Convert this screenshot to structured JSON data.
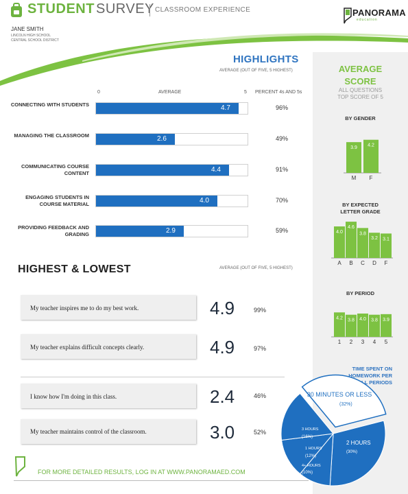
{
  "header": {
    "title_student": "STUDENT",
    "title_survey": "SURVEY",
    "title_sub": "CLASSROOM EXPERIENCE",
    "student_name": "JANE SMITH",
    "school": "LINCOLN HIGH SCHOOL",
    "district": "CENTRAL SCHOOL DISTRICT",
    "logo_text": "PANORAMA",
    "logo_sub": "education"
  },
  "highlights": {
    "title": "HIGHLIGHTS",
    "subtitle": "AVERAGE (OUT OF FIVE, 5 HIGHEST)",
    "axis_min": "0",
    "axis_label": "AVERAGE",
    "axis_max": "5",
    "pct_header": "PERCENT 4s AND 5s",
    "items": [
      {
        "label": "CONNECTING WITH STUDENTS",
        "value": 4.7,
        "value_text": "4.7",
        "pct": "96%"
      },
      {
        "label": "MANAGING THE CLASSROOM",
        "value": 2.6,
        "value_text": "2.6",
        "pct": "49%"
      },
      {
        "label": "COMMUNICATING COURSE CONTENT",
        "value": 4.4,
        "value_text": "4.4",
        "pct": "91%"
      },
      {
        "label": "ENGAGING STUDENTS IN COURSE MATERIAL",
        "value": 4.0,
        "value_text": "4.0",
        "pct": "70%"
      },
      {
        "label": "PROVIDING FEEDBACK AND GRADING",
        "value": 2.9,
        "value_text": "2.9",
        "pct": "59%"
      }
    ]
  },
  "highest_lowest": {
    "title": "HIGHEST & LOWEST",
    "subtitle": "AVERAGE (OUT OF FIVE, 5 HIGHEST)",
    "items": [
      {
        "statement": "My teacher inspires me to do my best work.",
        "score": "4.9",
        "pct": "99%"
      },
      {
        "statement": "My teacher explains difficult concepts clearly.",
        "score": "4.9",
        "pct": "97%"
      },
      {
        "statement": "I know how I'm doing in this class.",
        "score": "2.4",
        "pct": "46%"
      },
      {
        "statement": "My teacher maintains control of the classroom.",
        "score": "3.0",
        "pct": "52%"
      }
    ]
  },
  "side": {
    "title_line1": "AVERAGE",
    "title_line2": "SCORE",
    "sub_line1": "ALL QUESTIONS",
    "sub_line2": "TOP SCORE OF 5",
    "gender_label": "BY GENDER",
    "grade_label_line1": "BY EXPECTED",
    "grade_label_line2": "LETTER GRADE",
    "period_label": "BY PERIOD",
    "time_title_line1": "TIME SPENT ON",
    "time_title_line2": "HOMEWORK PER",
    "time_title_line3": "NIGHT, ALL PERIODS"
  },
  "footer": {
    "text": "FOR MORE DETAILED RESULTS, LOG IN AT WWW.PANORAMAED.COM"
  },
  "colors": {
    "green": "#7dc242",
    "blue": "#1f6fc0"
  },
  "chart_data": [
    {
      "type": "bar",
      "title": "BY GENDER",
      "categories": [
        "M",
        "F"
      ],
      "values": [
        3.9,
        4.2
      ],
      "ylim": [
        0,
        5
      ]
    },
    {
      "type": "bar",
      "title": "BY EXPECTED LETTER GRADE",
      "categories": [
        "A",
        "B",
        "C",
        "D",
        "F"
      ],
      "values": [
        4.0,
        4.6,
        3.8,
        3.2,
        3.1
      ],
      "ylim": [
        0,
        5
      ]
    },
    {
      "type": "bar",
      "title": "BY PERIOD",
      "categories": [
        "1",
        "2",
        "3",
        "4",
        "5"
      ],
      "values": [
        4.2,
        3.8,
        4.0,
        3.8,
        3.9
      ],
      "ylim": [
        0,
        5
      ]
    },
    {
      "type": "pie",
      "title": "TIME SPENT ON HOMEWORK PER NIGHT, ALL PERIODS",
      "slices": [
        {
          "label": "30 MINUTES OR LESS",
          "value": 32,
          "text": "(32%)"
        },
        {
          "label": "2 HOURS",
          "value": 30,
          "text": "(30%)"
        },
        {
          "label": "4+ HOURS",
          "value": 10,
          "text": "(10%)"
        },
        {
          "label": "1 HOURS",
          "value": 12,
          "text": "(12%)"
        },
        {
          "label": "3 HOURS",
          "value": 16,
          "text": "(16%)"
        }
      ]
    }
  ]
}
